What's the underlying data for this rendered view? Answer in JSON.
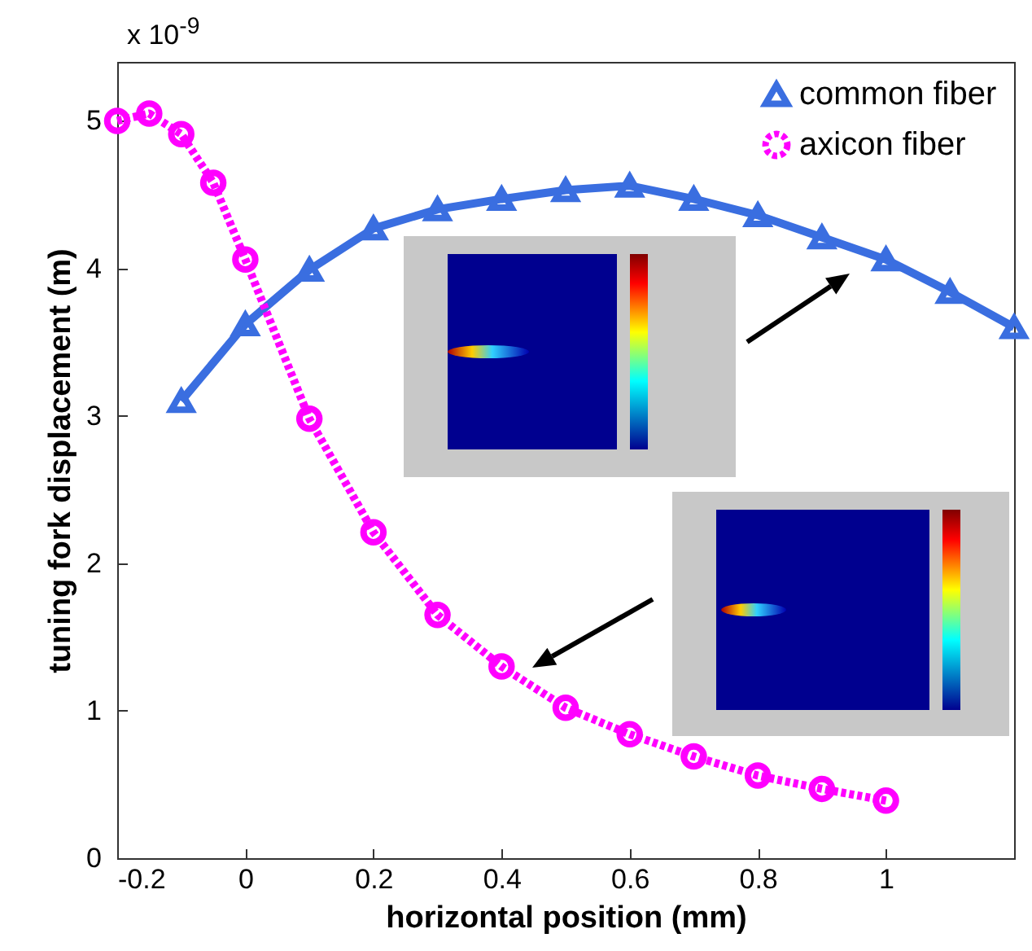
{
  "chart_data": {
    "type": "line",
    "xlabel": "horizontal position (mm)",
    "ylabel": "tuning fork displacement (m)",
    "annotations": [
      "x 10$^{-9}$"
    ],
    "xlim": [
      -0.2,
      1.2
    ],
    "xticks": [
      -0.2,
      0,
      0.2,
      0.4,
      0.6,
      0.8,
      1
    ],
    "ylim": [
      0,
      5.4
    ],
    "yticks": [
      0,
      1,
      2,
      3,
      4,
      5
    ],
    "grid": false,
    "legend": "top right",
    "series": [
      {
        "name": "common fiber",
        "color": "#3a6ee0",
        "marker": "triangle",
        "line_style": "solid",
        "x": [
          -0.1,
          0,
          0.1,
          0.2,
          0.3,
          0.4,
          0.5,
          0.6,
          0.7,
          0.8,
          0.9,
          1.0,
          1.1,
          1.2
        ],
        "values": [
          3.1,
          3.62,
          3.99,
          4.27,
          4.4,
          4.47,
          4.53,
          4.56,
          4.47,
          4.36,
          4.21,
          4.06,
          3.84,
          3.6
        ]
      },
      {
        "name": "axicon fiber",
        "color": "#ff00ff",
        "marker": "circle",
        "line_style": "dotted",
        "x": [
          -0.2,
          -0.15,
          -0.1,
          -0.05,
          0,
          0.1,
          0.2,
          0.3,
          0.4,
          0.5,
          0.6,
          0.7,
          0.8,
          0.9,
          1.0
        ],
        "values": [
          5.0,
          5.05,
          4.91,
          4.58,
          4.06,
          2.98,
          2.21,
          1.65,
          1.3,
          1.02,
          0.84,
          0.69,
          0.56,
          0.47,
          0.39
        ]
      }
    ]
  }
}
